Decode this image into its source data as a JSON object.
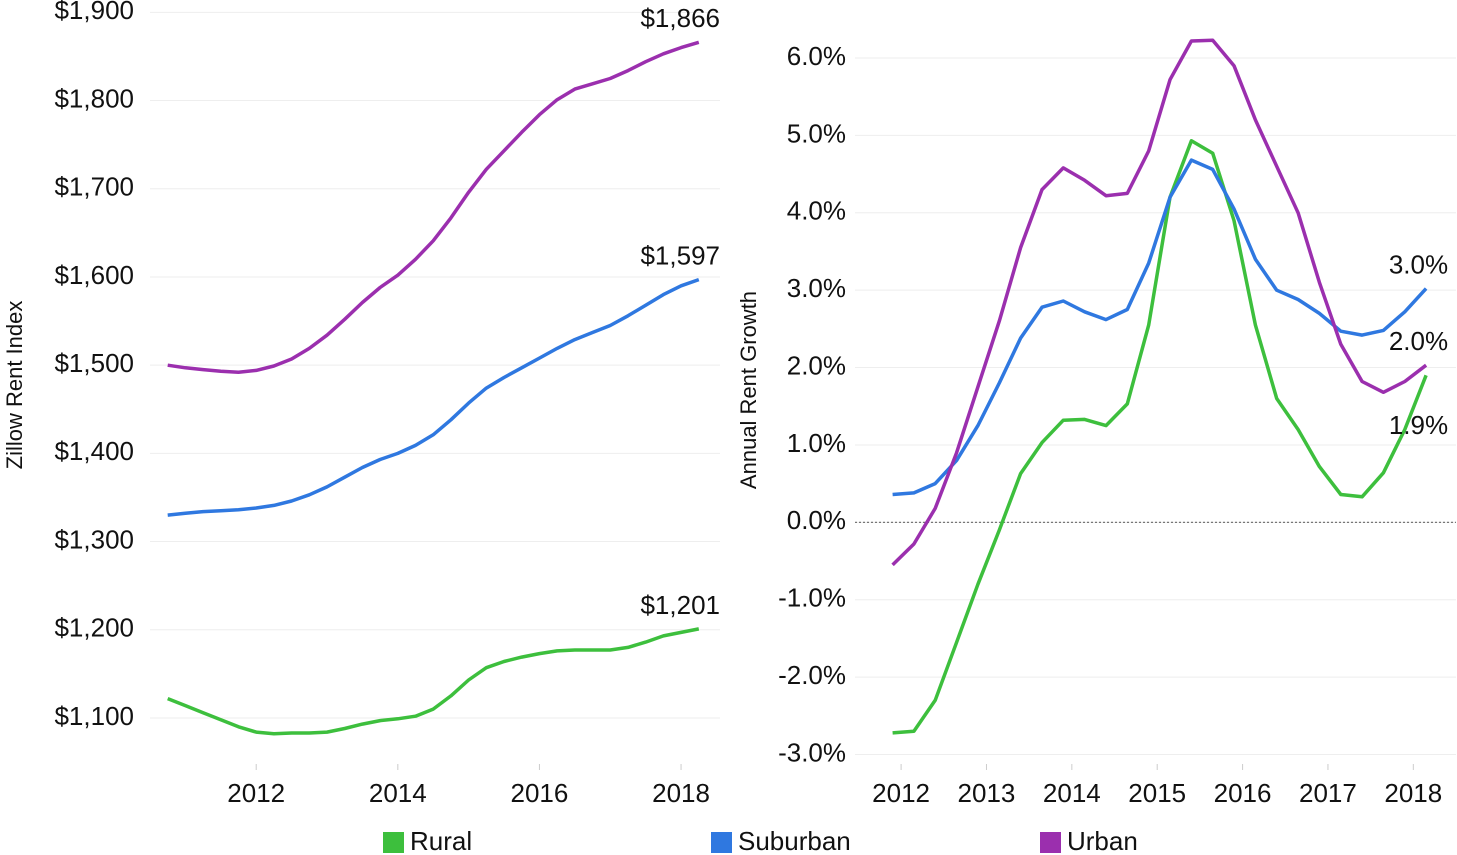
{
  "chart_data": [
    {
      "type": "line",
      "y_label": "Zillow Rent Index",
      "x": [
        2010.75,
        2011,
        2011.25,
        2011.5,
        2011.75,
        2012,
        2012.25,
        2012.5,
        2012.75,
        2013,
        2013.25,
        2013.5,
        2013.75,
        2014,
        2014.25,
        2014.5,
        2014.75,
        2015,
        2015.25,
        2015.5,
        2015.75,
        2016,
        2016.25,
        2016.5,
        2016.75,
        2017,
        2017.25,
        2017.5,
        2017.75,
        2018,
        2018.25
      ],
      "xlim": [
        2010.5,
        2018.55
      ],
      "xticks": [
        2012,
        2014,
        2016,
        2018
      ],
      "ylim": [
        1041,
        1914
      ],
      "yticks": [
        {
          "value": 1100,
          "label": "$1,100"
        },
        {
          "value": 1200,
          "label": "$1,200"
        },
        {
          "value": 1300,
          "label": "$1,300"
        },
        {
          "value": 1400,
          "label": "$1,400"
        },
        {
          "value": 1500,
          "label": "$1,500"
        },
        {
          "value": 1600,
          "label": "$1,600"
        },
        {
          "value": 1700,
          "label": "$1,700"
        },
        {
          "value": 1800,
          "label": "$1,800"
        },
        {
          "value": 1900,
          "label": "$1,900"
        }
      ],
      "grid": true,
      "series": [
        {
          "name": "Rural",
          "color": "#3dbf3d",
          "values": [
            1122,
            1114,
            1106,
            1098,
            1090,
            1084,
            1082,
            1083,
            1083,
            1084,
            1088,
            1093,
            1097,
            1099,
            1102,
            1110,
            1125,
            1143,
            1157,
            1164,
            1169,
            1173,
            1176,
            1177,
            1177,
            1177,
            1180,
            1186,
            1193,
            1197,
            1201
          ],
          "value_labels": [
            null,
            null,
            null,
            null,
            null,
            null,
            null,
            null,
            null,
            null,
            null,
            null,
            null,
            null,
            null,
            null,
            null,
            null,
            null,
            null,
            null,
            null,
            null,
            null,
            null,
            null,
            null,
            null,
            null,
            null,
            "$1,201"
          ]
        },
        {
          "name": "Suburban",
          "color": "#2f78e0",
          "values": [
            1330,
            1332,
            1334,
            1335,
            1336,
            1338,
            1341,
            1346,
            1353,
            1362,
            1373,
            1384,
            1393,
            1400,
            1409,
            1421,
            1438,
            1457,
            1474,
            1486,
            1497,
            1508,
            1519,
            1529,
            1537,
            1545,
            1556,
            1568,
            1580,
            1590,
            1597
          ],
          "value_labels": [
            null,
            null,
            null,
            null,
            null,
            null,
            null,
            null,
            null,
            null,
            null,
            null,
            null,
            null,
            null,
            null,
            null,
            null,
            null,
            null,
            null,
            null,
            null,
            null,
            null,
            null,
            null,
            null,
            null,
            null,
            "$1,597"
          ]
        },
        {
          "name": "Urban",
          "color": "#9b2fae",
          "values": [
            1500,
            1497,
            1495,
            1493,
            1492,
            1494,
            1499,
            1507,
            1519,
            1534,
            1552,
            1571,
            1588,
            1602,
            1620,
            1641,
            1667,
            1696,
            1722,
            1743,
            1764,
            1784,
            1801,
            1813,
            1819,
            1825,
            1834,
            1844,
            1853,
            1860,
            1866
          ],
          "value_labels": [
            null,
            null,
            null,
            null,
            null,
            null,
            null,
            null,
            null,
            null,
            null,
            null,
            null,
            null,
            null,
            null,
            null,
            null,
            null,
            null,
            null,
            null,
            null,
            null,
            null,
            null,
            null,
            null,
            null,
            null,
            "$1,866"
          ]
        }
      ]
    },
    {
      "type": "line",
      "y_label": "Annual Rent Growth",
      "x": [
        2011.9,
        2012.15,
        2012.4,
        2012.65,
        2012.9,
        2013.15,
        2013.4,
        2013.65,
        2013.9,
        2014.15,
        2014.4,
        2014.65,
        2014.9,
        2015.15,
        2015.4,
        2015.65,
        2015.9,
        2016.15,
        2016.4,
        2016.65,
        2016.9,
        2017.15,
        2017.4,
        2017.65,
        2017.9,
        2018.15
      ],
      "xlim": [
        2011.46,
        2018.5
      ],
      "xticks": [
        2012,
        2013,
        2014,
        2015,
        2016,
        2017,
        2018
      ],
      "ylim": [
        -3.2,
        6.62
      ],
      "yticks": [
        {
          "value": -3,
          "label": "-3.0%"
        },
        {
          "value": -2,
          "label": "-2.0%"
        },
        {
          "value": -1,
          "label": "-1.0%"
        },
        {
          "value": 0,
          "label": "0.0%"
        },
        {
          "value": 1,
          "label": "1.0%"
        },
        {
          "value": 2,
          "label": "2.0%"
        },
        {
          "value": 3,
          "label": "3.0%"
        },
        {
          "value": 4,
          "label": "4.0%"
        },
        {
          "value": 5,
          "label": "5.0%"
        },
        {
          "value": 6,
          "label": "6.0%"
        }
      ],
      "grid": true,
      "reference_line": 0,
      "series": [
        {
          "color": "#3dbf3d",
          "values": [
            -2.72,
            -2.7,
            -2.3,
            -1.55,
            -0.8,
            -0.1,
            0.63,
            1.03,
            1.32,
            1.33,
            1.25,
            1.53,
            2.55,
            4.2,
            4.93,
            4.77,
            3.9,
            2.55,
            1.6,
            1.2,
            0.72,
            0.36,
            0.33,
            0.64,
            1.2,
            1.9
          ],
          "value_labels": [
            null,
            null,
            null,
            null,
            null,
            null,
            null,
            null,
            null,
            null,
            null,
            null,
            null,
            null,
            null,
            null,
            null,
            null,
            null,
            null,
            null,
            null,
            null,
            null,
            null,
            "1.9%"
          ]
        },
        {
          "color": "#2f78e0",
          "values": [
            0.36,
            0.38,
            0.5,
            0.8,
            1.25,
            1.8,
            2.38,
            2.78,
            2.86,
            2.72,
            2.62,
            2.75,
            3.35,
            4.2,
            4.68,
            4.56,
            4.05,
            3.4,
            3.0,
            2.88,
            2.7,
            2.47,
            2.42,
            2.48,
            2.72,
            3.02
          ],
          "value_labels": [
            null,
            null,
            null,
            null,
            null,
            null,
            null,
            null,
            null,
            null,
            null,
            null,
            null,
            null,
            null,
            null,
            null,
            null,
            null,
            null,
            null,
            null,
            null,
            null,
            null,
            "3.0%"
          ]
        },
        {
          "color": "#9b2fae",
          "values": [
            -0.55,
            -0.28,
            0.18,
            0.9,
            1.75,
            2.6,
            3.55,
            4.3,
            4.58,
            4.42,
            4.22,
            4.25,
            4.8,
            5.72,
            6.22,
            6.23,
            5.9,
            5.2,
            4.6,
            4.0,
            3.1,
            2.3,
            1.82,
            1.68,
            1.82,
            2.03
          ],
          "value_labels": [
            null,
            null,
            null,
            null,
            null,
            null,
            null,
            null,
            null,
            null,
            null,
            null,
            null,
            null,
            null,
            null,
            null,
            null,
            null,
            null,
            null,
            null,
            null,
            null,
            null,
            "2.0%"
          ]
        }
      ]
    }
  ]
}
